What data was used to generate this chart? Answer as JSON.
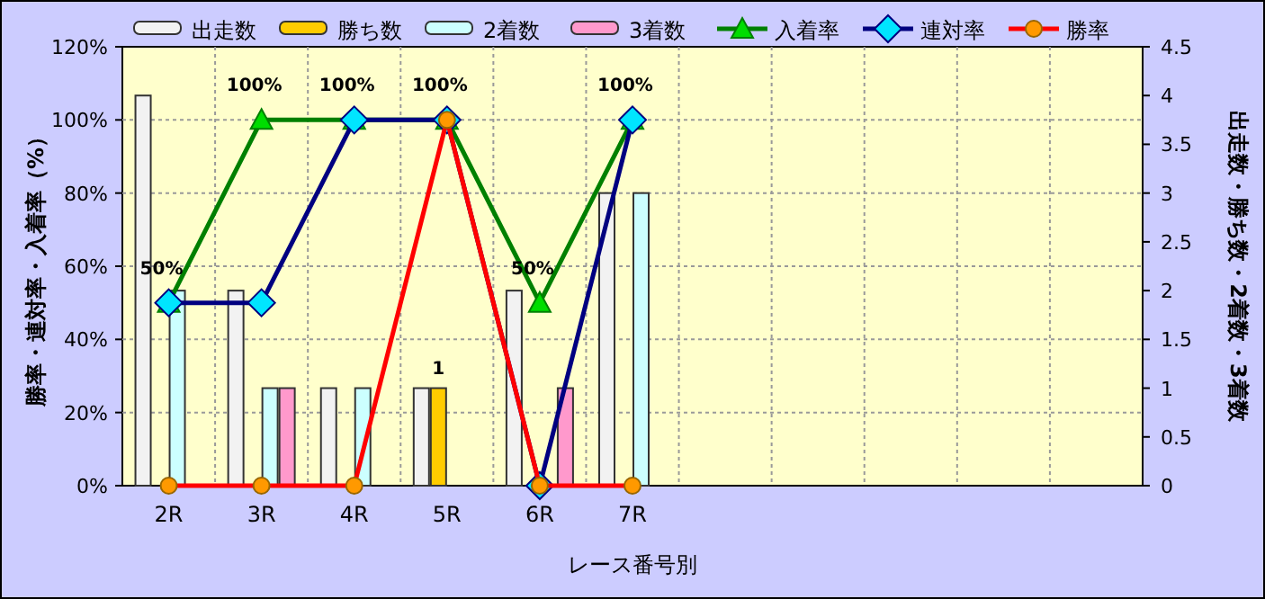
{
  "chart_data": {
    "type": "bar",
    "xlabel": "レース番号別",
    "ylabel": "勝率・連対率・入着率（%）",
    "y2label": "出走数・勝ち数・2着数・3着数",
    "categories": [
      "2R",
      "3R",
      "4R",
      "5R",
      "6R",
      "7R",
      null,
      null,
      null,
      null,
      null
    ],
    "ylim": [
      0,
      120
    ],
    "yticks": [
      {
        "value": 0,
        "label": "0%"
      },
      {
        "value": 20,
        "label": "20%"
      },
      {
        "value": 40,
        "label": "40%"
      },
      {
        "value": 60,
        "label": "60%"
      },
      {
        "value": 80,
        "label": "80%"
      },
      {
        "value": 100,
        "label": "100%"
      },
      {
        "value": 120,
        "label": "120%"
      }
    ],
    "y2lim": [
      0,
      4.5
    ],
    "y2ticks": [
      0,
      0.5,
      1,
      1.5,
      2,
      2.5,
      3,
      3.5,
      4,
      4.5
    ],
    "grid": true,
    "legend": "top",
    "series": [
      {
        "name": "出走数",
        "axis": "y2",
        "color": "#f2f2f2",
        "values": [
          4,
          2,
          1,
          1,
          2,
          3,
          null,
          null,
          null,
          null,
          null
        ]
      },
      {
        "name": "勝ち数",
        "axis": "y2",
        "color": "#ffcc00",
        "values": [
          0,
          0,
          0,
          1,
          0,
          0,
          null,
          null,
          null,
          null,
          null
        ],
        "value_labels": [
          null,
          null,
          null,
          "1",
          null,
          null,
          null,
          null,
          null,
          null,
          null
        ]
      },
      {
        "name": "2着数",
        "axis": "y2",
        "color": "#ccffff",
        "values": [
          2,
          1,
          1,
          0,
          0,
          3,
          null,
          null,
          null,
          null,
          null
        ]
      },
      {
        "name": "3着数",
        "axis": "y2",
        "color": "#ff99cc",
        "values": [
          0,
          1,
          0,
          0,
          1,
          0,
          null,
          null,
          null,
          null,
          null
        ]
      },
      {
        "name": "入着率",
        "type": "line",
        "marker": "triangle",
        "color": "#008000",
        "values": [
          50,
          100,
          100,
          100,
          50,
          100,
          null,
          null,
          null,
          null,
          null
        ],
        "value_labels": [
          "50%",
          "100%",
          "100%",
          "100%",
          "50%",
          "100%",
          null,
          null,
          null,
          null,
          null
        ]
      },
      {
        "name": "連対率",
        "type": "line",
        "marker": "diamond",
        "color": "#000080",
        "values": [
          50,
          50,
          100,
          100,
          0,
          100,
          null,
          null,
          null,
          null,
          null
        ]
      },
      {
        "name": "勝率",
        "type": "line",
        "marker": "circle",
        "color": "#ff0000",
        "values": [
          0,
          0,
          0,
          100,
          0,
          0,
          null,
          null,
          null,
          null,
          null
        ]
      }
    ]
  }
}
